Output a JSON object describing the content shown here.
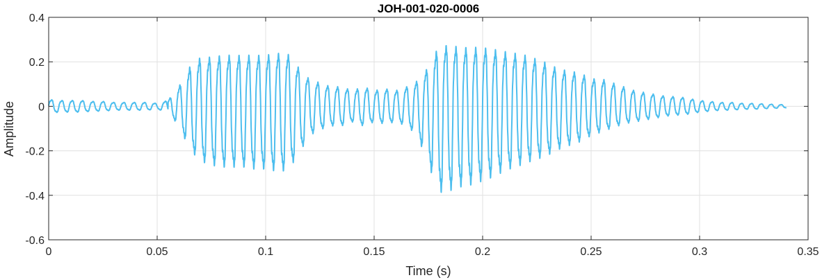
{
  "chart_data": {
    "type": "line",
    "title": "JOH-001-020-0006",
    "xlabel": "Time (s)",
    "ylabel": "Amplitude",
    "xlim": [
      0,
      0.35
    ],
    "ylim": [
      -0.6,
      0.4
    ],
    "x_ticks": [
      0,
      0.05,
      0.1,
      0.15,
      0.2,
      0.25,
      0.3,
      0.35
    ],
    "x_tick_labels": [
      "0",
      "0.05",
      "0.1",
      "0.15",
      "0.2",
      "0.25",
      "0.3",
      "0.35"
    ],
    "y_ticks": [
      -0.6,
      -0.4,
      -0.2,
      0,
      0.2,
      0.4
    ],
    "y_tick_labels": [
      "-0.6",
      "-0.4",
      "-0.2",
      "0",
      "0.2",
      "0.4"
    ],
    "grid": true,
    "line_color": "#4DBEEE",
    "series": [
      {
        "name": "",
        "x": [
          0,
          0.005,
          0.01,
          0.015,
          0.02,
          0.025,
          0.03,
          0.035,
          0.04,
          0.045,
          0.05,
          0.055,
          0.06,
          0.065,
          0.07,
          0.075,
          0.08,
          0.085,
          0.09,
          0.095,
          0.1,
          0.105,
          0.11,
          0.115,
          0.12,
          0.125,
          0.13,
          0.135,
          0.14,
          0.145,
          0.15,
          0.155,
          0.16,
          0.165,
          0.17,
          0.175,
          0.18,
          0.185,
          0.19,
          0.195,
          0.2,
          0.205,
          0.21,
          0.215,
          0.22,
          0.225,
          0.23,
          0.235,
          0.24,
          0.245,
          0.25,
          0.255,
          0.26,
          0.265,
          0.27,
          0.275,
          0.28,
          0.285,
          0.29,
          0.295,
          0.3,
          0.305,
          0.31,
          0.315,
          0.32,
          0.325,
          0.33,
          0.335,
          0.34
        ],
        "upper": [
          0.035,
          0.03,
          0.03,
          0.03,
          0.025,
          0.025,
          0.02,
          0.02,
          0.02,
          0.02,
          0.015,
          0.03,
          0.1,
          0.2,
          0.25,
          0.25,
          0.26,
          0.26,
          0.26,
          0.26,
          0.26,
          0.27,
          0.27,
          0.2,
          0.14,
          0.12,
          0.1,
          0.1,
          0.08,
          0.1,
          0.08,
          0.09,
          0.08,
          0.1,
          0.13,
          0.2,
          0.31,
          0.31,
          0.3,
          0.3,
          0.3,
          0.29,
          0.28,
          0.27,
          0.26,
          0.24,
          0.22,
          0.19,
          0.18,
          0.17,
          0.14,
          0.14,
          0.12,
          0.1,
          0.08,
          0.07,
          0.06,
          0.05,
          0.05,
          0.04,
          0.03,
          0.025,
          0.02,
          0.02,
          0.015,
          0.015,
          0.012,
          0.01,
          0.008
        ],
        "lower": [
          -0.035,
          -0.03,
          -0.03,
          -0.03,
          -0.025,
          -0.025,
          -0.02,
          -0.02,
          -0.02,
          -0.02,
          -0.015,
          -0.03,
          -0.1,
          -0.22,
          -0.28,
          -0.3,
          -0.31,
          -0.31,
          -0.31,
          -0.32,
          -0.32,
          -0.33,
          -0.33,
          -0.25,
          -0.15,
          -0.12,
          -0.1,
          -0.1,
          -0.08,
          -0.1,
          -0.08,
          -0.09,
          -0.08,
          -0.1,
          -0.15,
          -0.3,
          -0.44,
          -0.43,
          -0.41,
          -0.4,
          -0.38,
          -0.36,
          -0.33,
          -0.31,
          -0.29,
          -0.27,
          -0.25,
          -0.22,
          -0.2,
          -0.18,
          -0.15,
          -0.13,
          -0.11,
          -0.09,
          -0.08,
          -0.07,
          -0.06,
          -0.05,
          -0.045,
          -0.04,
          -0.03,
          -0.025,
          -0.02,
          -0.02,
          -0.015,
          -0.015,
          -0.012,
          -0.01,
          -0.008
        ]
      }
    ]
  }
}
